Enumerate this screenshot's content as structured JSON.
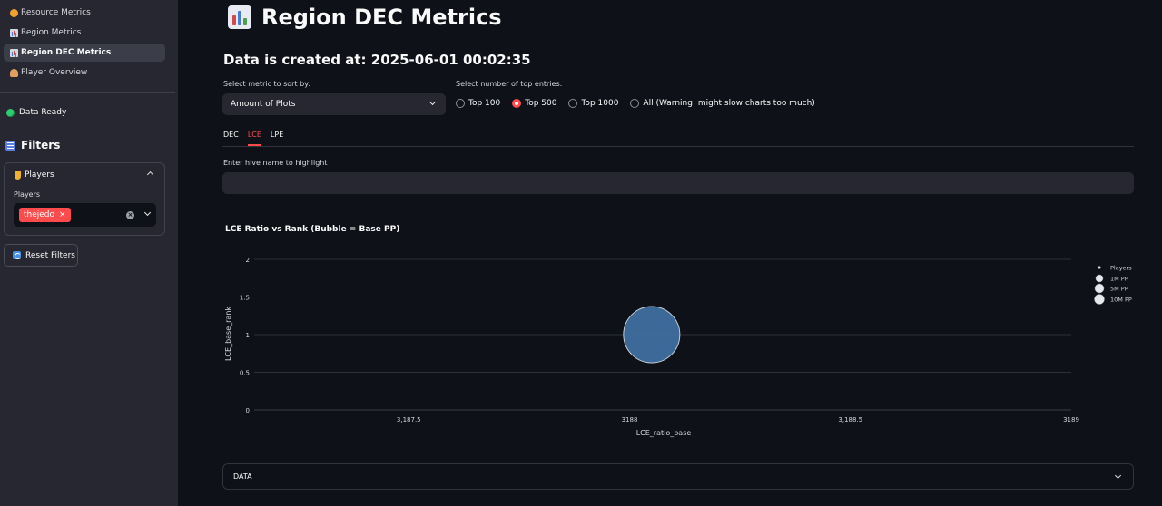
{
  "sidebar": {
    "nav": [
      {
        "label": "Resource Metrics",
        "icon": "resource-dot-icon"
      },
      {
        "label": "Region Metrics",
        "icon": "bar-chart-icon"
      },
      {
        "label": "Region DEC Metrics",
        "icon": "bar-chart-icon",
        "active": true
      },
      {
        "label": "Player Overview",
        "icon": "player-icon"
      }
    ],
    "status": "Data Ready",
    "filters_title": "Filters",
    "players_section": {
      "header": "Players",
      "label": "Players",
      "selected": [
        "thejedo"
      ],
      "tag_remove": "×"
    },
    "reset_label": "Reset Filters"
  },
  "main": {
    "title": "Region DEC Metrics",
    "created": "Data is created at: 2025-06-01 00:02:35",
    "sort_label": "Select metric to sort by:",
    "sort_value": "Amount of Plots",
    "top_label": "Select number of top entries:",
    "top_options": [
      "Top 100",
      "Top 500",
      "Top 1000",
      "All (Warning: might slow charts too much)"
    ],
    "top_selected": "Top 500",
    "tabs": [
      "DEC",
      "LCE",
      "LPE"
    ],
    "active_tab": "LCE",
    "hive_label": "Enter hive name to highlight",
    "hive_value": "",
    "data_expander": "DATA"
  },
  "chart_data": {
    "type": "scatter",
    "title": "LCE Ratio vs Rank (Bubble = Base PP)",
    "xlabel": "LCE_ratio_base",
    "ylabel": "LCE_base_rank",
    "xlim": [
      3187.15,
      3189
    ],
    "ylim": [
      0,
      2
    ],
    "x_ticks": [
      {
        "value": 3187.5,
        "label": "3,187.5"
      },
      {
        "value": 3188,
        "label": "3188"
      },
      {
        "value": 3188.5,
        "label": "3,188.5"
      },
      {
        "value": 3189,
        "label": "3189"
      }
    ],
    "y_ticks": [
      {
        "value": 0,
        "label": "0"
      },
      {
        "value": 0.5,
        "label": "0.5"
      },
      {
        "value": 1,
        "label": "1"
      },
      {
        "value": 1.5,
        "label": "1.5"
      },
      {
        "value": 2,
        "label": "2"
      }
    ],
    "grid": true,
    "points": [
      {
        "x": 3188.05,
        "y": 1
      }
    ],
    "point_color": "#3f6e9e",
    "legend": {
      "placement": "right",
      "entries": [
        "Players",
        "1M PP",
        "5M PP",
        "10M PP"
      ]
    }
  }
}
